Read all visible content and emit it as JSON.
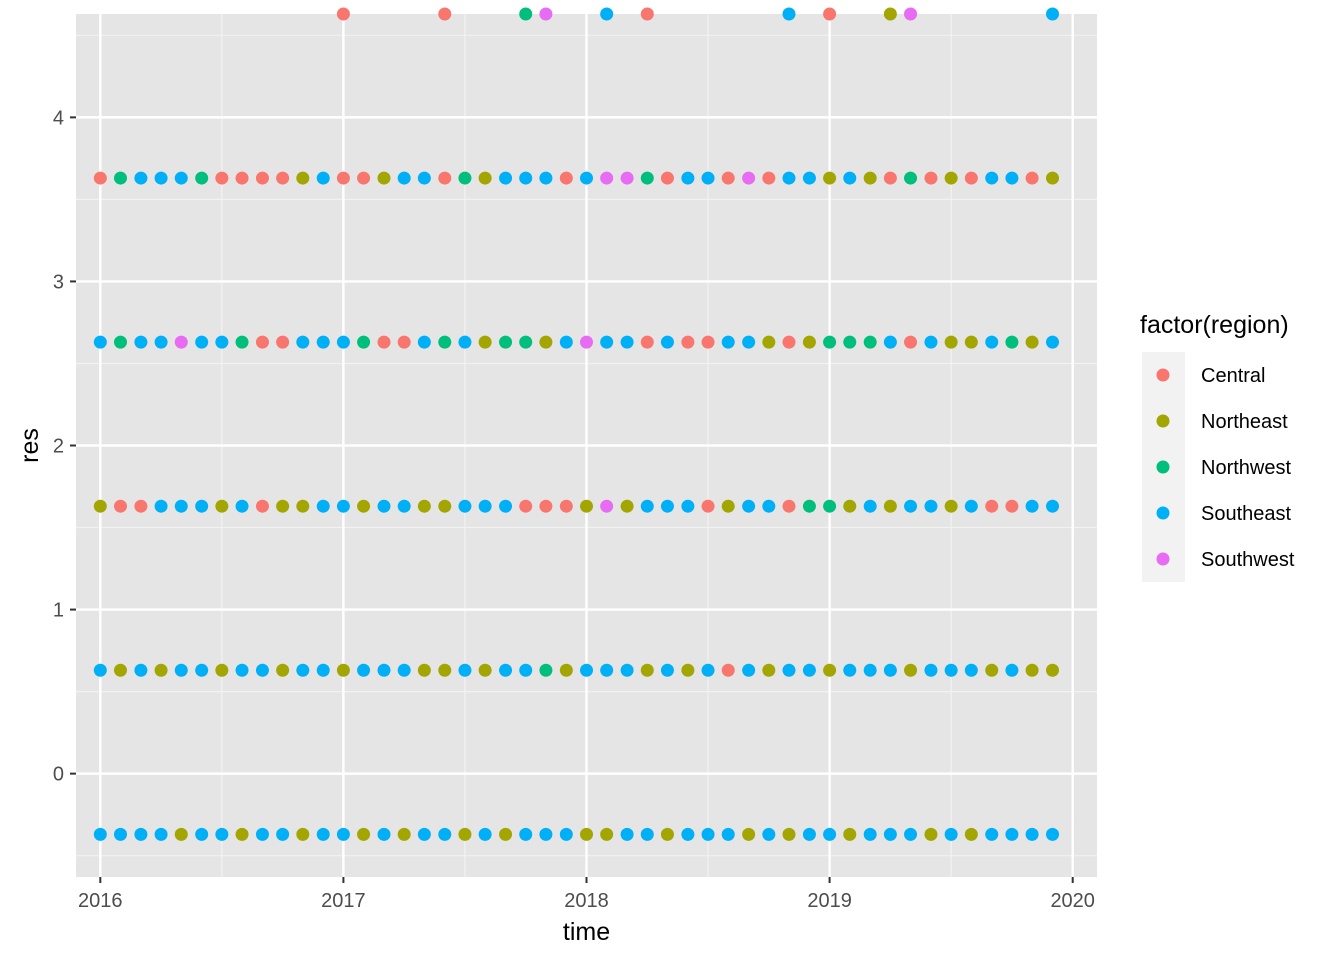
{
  "chart_data": {
    "type": "scatter",
    "title": "",
    "xlabel": "time",
    "ylabel": "res",
    "xlim": [
      2015.9,
      2020.1
    ],
    "ylim": [
      -0.63,
      4.63
    ],
    "x_ticks": [
      2016,
      2017,
      2018,
      2019,
      2020
    ],
    "x_tick_labels": [
      "2016",
      "2017",
      "2018",
      "2019",
      "2020"
    ],
    "y_ticks": [
      0,
      1,
      2,
      3,
      4
    ],
    "y_tick_labels": [
      "0",
      "1",
      "2",
      "3",
      "4"
    ],
    "grid": true,
    "panel_background": "#e5e5e5",
    "legend": {
      "title": "factor(region)",
      "placement": "right",
      "entries": [
        "Central",
        "Northeast",
        "Northwest",
        "Southeast",
        "Southwest"
      ]
    },
    "colors": {
      "Central": "#f8766d",
      "Northeast": "#a3a500",
      "Northwest": "#00bf7d",
      "Southeast": "#00b0f6",
      "Southwest": "#e76bf3"
    },
    "months_x": [
      2016.0,
      2016.083,
      2016.167,
      2016.25,
      2016.333,
      2016.417,
      2016.5,
      2016.583,
      2016.667,
      2016.75,
      2016.833,
      2016.917,
      2017.0,
      2017.083,
      2017.167,
      2017.25,
      2017.333,
      2017.417,
      2017.5,
      2017.583,
      2017.667,
      2017.75,
      2017.833,
      2017.917,
      2018.0,
      2018.083,
      2018.167,
      2018.25,
      2018.333,
      2018.417,
      2018.5,
      2018.583,
      2018.667,
      2018.75,
      2018.833,
      2018.917,
      2019.0,
      2019.083,
      2019.167,
      2019.25,
      2019.333,
      2019.417,
      2019.5,
      2019.583,
      2019.667,
      2019.75,
      2019.833,
      2019.917
    ],
    "row_levels": [
      -0.37,
      0.63,
      1.63,
      2.63,
      3.63,
      4.63
    ],
    "rows": [
      {
        "y": -0.37,
        "regions": [
          "Southeast",
          "Southeast",
          "Southeast",
          "Southeast",
          "Northeast",
          "Southeast",
          "Southeast",
          "Northeast",
          "Southeast",
          "Southeast",
          "Northeast",
          "Southeast",
          "Southeast",
          "Northeast",
          "Southeast",
          "Northeast",
          "Southeast",
          "Southeast",
          "Northeast",
          "Southeast",
          "Northeast",
          "Southeast",
          "Southeast",
          "Southeast",
          "Northeast",
          "Northeast",
          "Southeast",
          "Southeast",
          "Northeast",
          "Southeast",
          "Southeast",
          "Southeast",
          "Northeast",
          "Southeast",
          "Northeast",
          "Southeast",
          "Southeast",
          "Northeast",
          "Southeast",
          "Southeast",
          "Southeast",
          "Northeast",
          "Southeast",
          "Northeast",
          "Southeast",
          "Southeast",
          "Southeast",
          "Southeast"
        ]
      },
      {
        "y": 0.63,
        "regions": [
          "Southeast",
          "Northeast",
          "Southeast",
          "Northeast",
          "Southeast",
          "Southeast",
          "Northeast",
          "Southeast",
          "Southeast",
          "Northeast",
          "Southeast",
          "Southeast",
          "Northeast",
          "Southeast",
          "Southeast",
          "Southeast",
          "Northeast",
          "Northeast",
          "Southeast",
          "Northeast",
          "Southeast",
          "Southeast",
          "Northwest",
          "Northeast",
          "Southeast",
          "Southeast",
          "Southeast",
          "Northeast",
          "Southeast",
          "Northeast",
          "Southeast",
          "Central",
          "Southeast",
          "Northeast",
          "Southeast",
          "Southeast",
          "Northeast",
          "Southeast",
          "Southeast",
          "Southeast",
          "Northeast",
          "Southeast",
          "Southeast",
          "Southeast",
          "Northeast",
          "Southeast",
          "Northeast",
          "Northeast"
        ]
      },
      {
        "y": 1.63,
        "regions": [
          "Northeast",
          "Central",
          "Central",
          "Southeast",
          "Southeast",
          "Southeast",
          "Northeast",
          "Southeast",
          "Central",
          "Northeast",
          "Northeast",
          "Southeast",
          "Southeast",
          "Northeast",
          "Southeast",
          "Southeast",
          "Northeast",
          "Northeast",
          "Southeast",
          "Southeast",
          "Southeast",
          "Central",
          "Central",
          "Central",
          "Northeast",
          "Southwest",
          "Northeast",
          "Southeast",
          "Southeast",
          "Southeast",
          "Central",
          "Northeast",
          "Southeast",
          "Southeast",
          "Central",
          "Northwest",
          "Northwest",
          "Northeast",
          "Southeast",
          "Northeast",
          "Southeast",
          "Southeast",
          "Northeast",
          "Southeast",
          "Central",
          "Central",
          "Southeast",
          "Southeast"
        ]
      },
      {
        "y": 2.63,
        "regions": [
          "Southeast",
          "Northwest",
          "Southeast",
          "Southeast",
          "Southwest",
          "Southeast",
          "Southeast",
          "Northwest",
          "Central",
          "Central",
          "Southeast",
          "Southeast",
          "Southeast",
          "Northwest",
          "Central",
          "Central",
          "Southeast",
          "Northwest",
          "Southeast",
          "Northeast",
          "Northwest",
          "Northwest",
          "Northeast",
          "Southeast",
          "Southwest",
          "Southeast",
          "Southeast",
          "Central",
          "Southeast",
          "Central",
          "Central",
          "Southeast",
          "Southeast",
          "Northeast",
          "Central",
          "Northeast",
          "Northwest",
          "Northwest",
          "Northwest",
          "Southeast",
          "Central",
          "Southeast",
          "Northeast",
          "Northeast",
          "Southeast",
          "Northwest",
          "Northeast",
          "Southeast"
        ]
      },
      {
        "y": 3.63,
        "regions": [
          "Central",
          "Northwest",
          "Southeast",
          "Southeast",
          "Southeast",
          "Northwest",
          "Central",
          "Central",
          "Central",
          "Central",
          "Northeast",
          "Southeast",
          "Central",
          "Central",
          "Northeast",
          "Southeast",
          "Southeast",
          "Central",
          "Northwest",
          "Northeast",
          "Southeast",
          "Southeast",
          "Southeast",
          "Central",
          "Southeast",
          "Southwest",
          "Southwest",
          "Northwest",
          "Central",
          "Southeast",
          "Southeast",
          "Central",
          "Southwest",
          "Central",
          "Southeast",
          "Southeast",
          "Northeast",
          "Southeast",
          "Northeast",
          "Central",
          "Northwest",
          "Central",
          "Northeast",
          "Central",
          "Southeast",
          "Southeast",
          "Central",
          "Northeast"
        ]
      },
      {
        "y": 4.63,
        "points": [
          {
            "x": 2017.0,
            "region": "Central"
          },
          {
            "x": 2017.417,
            "region": "Central"
          },
          {
            "x": 2017.75,
            "region": "Northwest"
          },
          {
            "x": 2017.833,
            "region": "Southwest"
          },
          {
            "x": 2018.083,
            "region": "Southeast"
          },
          {
            "x": 2018.25,
            "region": "Central"
          },
          {
            "x": 2018.833,
            "region": "Southeast"
          },
          {
            "x": 2019.0,
            "region": "Central"
          },
          {
            "x": 2019.25,
            "region": "Northeast"
          },
          {
            "x": 2019.333,
            "region": "Southwest"
          },
          {
            "x": 2019.917,
            "region": "Southeast"
          }
        ]
      }
    ]
  }
}
